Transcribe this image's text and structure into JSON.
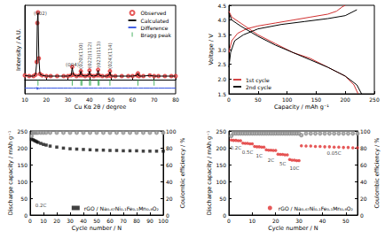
{
  "chart_data": [
    {
      "type": "line",
      "xlabel": "Cu Kα 2θ / degree",
      "ylabel": "Intensity / A.U.",
      "xlim": [
        10,
        80
      ],
      "xticks": [
        10,
        20,
        30,
        40,
        50,
        60,
        70,
        80
      ],
      "ylim": [
        -20,
        105
      ],
      "tick_labels": "x",
      "grid": false,
      "legend": "upper right",
      "x": [
        10,
        12,
        14,
        15,
        15.5,
        15.8,
        16.1,
        16.5,
        17,
        18,
        20,
        22,
        25,
        28,
        30,
        31.5,
        32,
        32.5,
        34,
        35.5,
        36,
        36.5,
        38,
        39.5,
        40,
        40.5,
        42,
        43.5,
        44,
        44.5,
        46,
        48,
        49,
        49.5,
        50,
        52,
        55,
        58,
        60,
        62,
        62.5,
        63,
        65,
        68,
        70,
        72,
        75,
        78,
        80
      ],
      "series": [
        {
          "name": "Observed",
          "color": "#e03030",
          "type": "scatter",
          "marker": "open_circle",
          "values": [
            6,
            5,
            5,
            7,
            25,
            80,
            95,
            30,
            8,
            6,
            5,
            5,
            5,
            5,
            5,
            6,
            18,
            7,
            5,
            6,
            12,
            6,
            5,
            6,
            13,
            6,
            5,
            6,
            14,
            6,
            5,
            5,
            6,
            12,
            5,
            5,
            5,
            5,
            5,
            6,
            9,
            5,
            5,
            6,
            5,
            5,
            5,
            5,
            5
          ]
        },
        {
          "name": "Calculated",
          "color": "#000000",
          "type": "line",
          "marker": "none",
          "values": [
            6,
            5,
            5,
            7,
            24,
            82,
            94,
            31,
            8,
            6,
            5,
            5,
            5,
            5,
            5,
            6,
            17,
            7,
            5,
            6,
            12,
            6,
            5,
            6,
            12,
            6,
            5,
            6,
            13,
            6,
            5,
            5,
            6,
            11,
            5,
            5,
            5,
            5,
            5,
            6,
            9,
            5,
            5,
            6,
            5,
            5,
            5,
            5,
            5
          ]
        },
        {
          "name": "Difference",
          "color": "#3050e0",
          "type": "line",
          "marker": "none",
          "values": [
            -12,
            -12,
            -12,
            -12,
            -11,
            -14,
            -11,
            -13,
            -12,
            -12,
            -12,
            -12,
            -12,
            -12,
            -12,
            -12,
            -12,
            -12,
            -12,
            -12,
            -12,
            -12,
            -12,
            -12,
            -12,
            -12,
            -12,
            -12,
            -12,
            -12,
            -12,
            -12,
            -12,
            -12,
            -12,
            -12,
            -12,
            -12,
            -12,
            -12,
            -12,
            -12,
            -12,
            -12,
            -12,
            -12,
            -12,
            -12,
            -12
          ]
        },
        {
          "name": "Bragg peak",
          "color": "#20a040",
          "type": "scatter",
          "marker": "vline",
          "values": [
            null,
            null,
            null,
            null,
            null,
            null,
            -4,
            null,
            null,
            null,
            null,
            null,
            null,
            null,
            null,
            null,
            -4,
            null,
            null,
            null,
            -4,
            -4,
            null,
            null,
            -4,
            -4,
            null,
            null,
            -4,
            -4,
            null,
            null,
            null,
            -4,
            null,
            null,
            null,
            null,
            null,
            null,
            -4,
            null,
            null,
            null,
            -4,
            null,
            null,
            null,
            null
          ]
        }
      ],
      "annotations": [
        {
          "text": "(002)",
          "x": 17.2,
          "y": 94
        },
        {
          "text": "(004)",
          "x": 32,
          "y": 21
        },
        {
          "text": "(020)(110)",
          "x": 36,
          "y": 15
        },
        {
          "text": "(022)(112)",
          "x": 40,
          "y": 16
        },
        {
          "text": "(023)(113)",
          "x": 44,
          "y": 17
        },
        {
          "text": "(024)(114)",
          "x": 49.5,
          "y": 15
        }
      ]
    },
    {
      "type": "line",
      "xlabel": "Capacity / mAh g⁻¹",
      "ylabel": "Voltage / V",
      "xlim": [
        0,
        250
      ],
      "xticks": [
        0,
        50,
        100,
        150,
        200,
        250
      ],
      "ylim": [
        1.5,
        4.5
      ],
      "yticks": [
        1.5,
        {
          "value": 2,
          "label": "2.0"
        },
        2.5,
        {
          "value": 3,
          "label": "3.0"
        },
        3.5,
        {
          "value": 4,
          "label": "4.0"
        },
        4.5
      ],
      "grid": false,
      "legend": "lower left",
      "series": [
        {
          "name": "1st cycle",
          "color": "#d03030",
          "marker": "none",
          "x": [
            0,
            5,
            15,
            30,
            50,
            80,
            110,
            140,
            170,
            185,
            195,
            200
          ],
          "values": [
            2.9,
            3.3,
            3.55,
            3.7,
            3.8,
            3.9,
            4.0,
            4.1,
            4.2,
            4.3,
            4.45,
            4.5
          ]
        },
        {
          "name": "1st cycle",
          "color": "#d03030",
          "marker": "none",
          "x": [
            0,
            5,
            20,
            50,
            80,
            110,
            140,
            170,
            200,
            215,
            222
          ],
          "values": [
            4.3,
            4.1,
            3.9,
            3.5,
            3.2,
            2.9,
            2.7,
            2.4,
            2.1,
            1.8,
            1.5
          ]
        },
        {
          "name": "2nd cycle",
          "color": "#000000",
          "marker": "none",
          "x": [
            0,
            3,
            10,
            25,
            50,
            90,
            130,
            170,
            200,
            215,
            220
          ],
          "values": [
            2.4,
            2.9,
            3.3,
            3.5,
            3.7,
            3.85,
            3.95,
            4.05,
            4.15,
            4.3,
            4.35
          ]
        },
        {
          "name": "2nd cycle",
          "color": "#000000",
          "marker": "none",
          "x": [
            0,
            5,
            20,
            50,
            80,
            110,
            140,
            170,
            200,
            220,
            228
          ],
          "values": [
            4.25,
            4.0,
            3.8,
            3.45,
            3.15,
            2.9,
            2.65,
            2.4,
            2.1,
            1.8,
            1.5
          ]
        }
      ]
    },
    {
      "type": "scatter",
      "xlabel": "Cycle number / N",
      "ylabel": "Discharge capacity / mAh g⁻¹",
      "y2label": "Coulombic efficiency / %",
      "xlim": [
        0,
        100
      ],
      "xticks": [
        0,
        10,
        20,
        30,
        40,
        50,
        60,
        70,
        80,
        90,
        100
      ],
      "ylim": [
        0,
        250
      ],
      "yticks": [
        0,
        50,
        100,
        150,
        200,
        250
      ],
      "y2lim": [
        0,
        100
      ],
      "y2ticks": [
        0,
        20,
        40,
        60,
        80,
        100
      ],
      "grid": false,
      "legend": "lower right",
      "x": [
        1,
        2,
        3,
        4,
        5,
        6,
        8,
        10,
        12,
        15,
        20,
        25,
        30,
        35,
        40,
        45,
        50,
        55,
        60,
        65,
        70,
        75,
        80,
        85,
        90,
        95,
        100
      ],
      "series": [
        {
          "name": "rGO / Na₀.₆₇Ni₀.₁Fe₀.₁Mn₀.₈O₂",
          "color": "#111111",
          "marker": "square",
          "values": [
            226,
            224,
            222,
            220,
            218,
            216,
            213,
            210,
            208,
            205,
            202,
            199,
            197,
            196,
            195,
            194,
            193,
            193,
            192,
            192,
            191,
            191,
            191,
            190,
            190,
            190,
            190
          ]
        },
        {
          "color": "#888888",
          "marker": "open_circle",
          "axis": "y2",
          "values": [
            94,
            98,
            98,
            98,
            98,
            98,
            98,
            98,
            98,
            98,
            98,
            98,
            98,
            98,
            98,
            98,
            98,
            98,
            98,
            98,
            98,
            98,
            98,
            98,
            98,
            98,
            98
          ]
        }
      ],
      "annotations": [
        {
          "text": "0.2C",
          "x": 8,
          "y": 30
        }
      ]
    },
    {
      "type": "scatter",
      "xlabel": "Cycle number / N",
      "ylabel": "Discharge capacity / mAh g⁻¹",
      "y2label": "Coulombic efficiency / %",
      "xlim": [
        0,
        55
      ],
      "xticks": [
        0,
        10,
        20,
        30,
        40,
        50
      ],
      "ylim": [
        0,
        250
      ],
      "yticks": [
        0,
        50,
        100,
        150,
        200,
        250
      ],
      "y2lim": [
        0,
        100
      ],
      "y2ticks": [
        0,
        20,
        40,
        60,
        80,
        100
      ],
      "grid": false,
      "legend": "lower right",
      "x": [
        1,
        2,
        3,
        4,
        5,
        6,
        7,
        8,
        9,
        10,
        11,
        12,
        13,
        14,
        15,
        16,
        17,
        18,
        19,
        20,
        21,
        22,
        23,
        24,
        25,
        26,
        27,
        28,
        29,
        30,
        31,
        33,
        35,
        37,
        39,
        41,
        43,
        45,
        47,
        49,
        51,
        53,
        55
      ],
      "series": [
        {
          "name": "rGO / Na₀.₆₇Ni₀.₁Fe₀.₁Mn₀.₈O₂",
          "color": "#e03030",
          "marker": "circle",
          "values": [
            223,
            222,
            222,
            221,
            221,
            214,
            213,
            213,
            212,
            212,
            204,
            203,
            203,
            202,
            202,
            194,
            193,
            193,
            192,
            192,
            181,
            180,
            180,
            179,
            179,
            165,
            163,
            163,
            162,
            162,
            206,
            205,
            205,
            204,
            204,
            203,
            203,
            202,
            202,
            201,
            201,
            200,
            200
          ]
        },
        {
          "color": "#888888",
          "marker": "open_circle",
          "axis": "y2",
          "values": [
            94,
            97,
            97,
            97,
            97,
            97,
            97,
            97,
            97,
            97,
            97,
            97,
            97,
            97,
            97,
            97,
            97,
            97,
            97,
            97,
            97,
            97,
            97,
            97,
            97,
            97,
            97,
            97,
            97,
            97,
            95,
            97,
            97,
            97,
            97,
            97,
            97,
            97,
            97,
            97,
            97,
            97,
            97
          ]
        }
      ],
      "annotations": [
        {
          "text": "0.2C",
          "x": 3,
          "y": 200
        },
        {
          "text": "0.5C",
          "x": 8,
          "y": 188
        },
        {
          "text": "1C",
          "x": 13,
          "y": 176
        },
        {
          "text": "2C",
          "x": 18,
          "y": 164
        },
        {
          "text": "5C",
          "x": 23,
          "y": 152
        },
        {
          "text": "10C",
          "x": 28,
          "y": 140
        },
        {
          "text": "0.05C",
          "x": 45,
          "y": 185
        }
      ]
    }
  ]
}
